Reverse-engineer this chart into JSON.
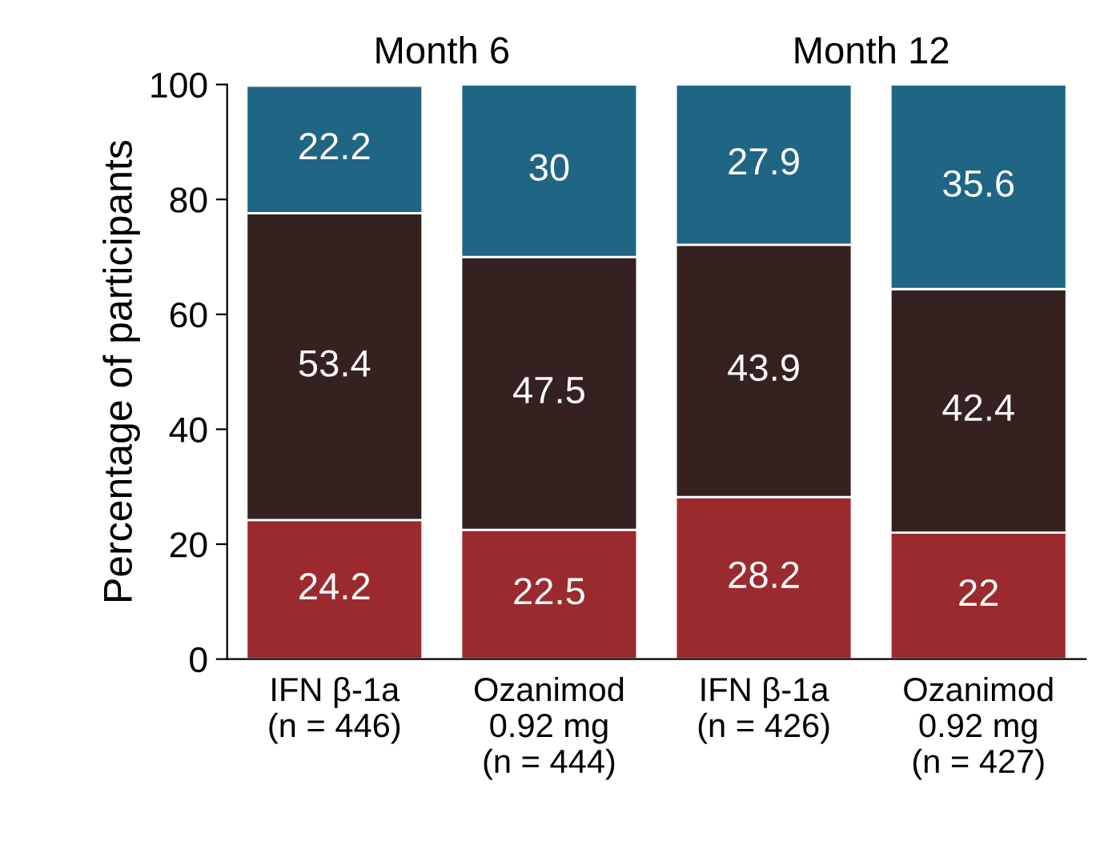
{
  "chart_data": {
    "type": "bar",
    "stacked": true,
    "ylabel": "Percentage of participants",
    "categories": [
      "IFN β-1a\n(n = 446)",
      "Ozanimod\n0.92 mg\n(n = 444)",
      "IFN β-1a\n(n = 426)",
      "Ozanimod\n0.92 mg\n(n = 427)"
    ],
    "series": [
      {
        "color": "#9b2a2f",
        "values": [
          24.2,
          22.5,
          28.2,
          22
        ]
      },
      {
        "color": "#35211f",
        "values": [
          53.4,
          47.5,
          43.9,
          42.4
        ]
      },
      {
        "color": "#1f6584",
        "values": [
          22.2,
          30,
          27.9,
          35.6
        ]
      }
    ],
    "ylim": [
      0,
      100
    ],
    "yticks": [
      0,
      20,
      40,
      60,
      80,
      100
    ],
    "grid": false,
    "legend": false,
    "data_labels": true,
    "annotations": [
      "Month 6",
      "Month 12"
    ]
  }
}
